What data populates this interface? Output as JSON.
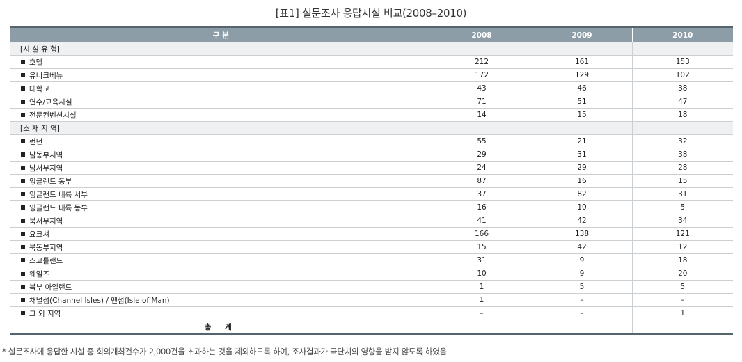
{
  "title": "[표1] 설문조사 응답시설 비교(2008–2010)",
  "header": {
    "label": "구 분",
    "years": [
      "2008",
      "2009",
      "2010"
    ]
  },
  "sections": [
    {
      "label": "[시 설 유 형]",
      "rows": [
        {
          "label": "호텔",
          "values": [
            "212",
            "161",
            "153"
          ]
        },
        {
          "label": "유니크베뉴",
          "values": [
            "172",
            "129",
            "102"
          ]
        },
        {
          "label": "대학교",
          "values": [
            "43",
            "46",
            "38"
          ]
        },
        {
          "label": "연수/교육시설",
          "values": [
            "71",
            "51",
            "47"
          ]
        },
        {
          "label": "전문컨벤션시설",
          "values": [
            "14",
            "15",
            "18"
          ]
        }
      ]
    },
    {
      "label": "[소 재 지 역]",
      "rows": [
        {
          "label": "런던",
          "values": [
            "55",
            "21",
            "32"
          ]
        },
        {
          "label": "남동부지역",
          "values": [
            "29",
            "31",
            "38"
          ]
        },
        {
          "label": "남서부지역",
          "values": [
            "24",
            "29",
            "28"
          ]
        },
        {
          "label": "잉글랜드 동부",
          "values": [
            "87",
            "16",
            "15"
          ]
        },
        {
          "label": "잉글랜드 내륙 서부",
          "values": [
            "37",
            "82",
            "31"
          ]
        },
        {
          "label": "잉글랜드 내륙 동부",
          "values": [
            "16",
            "10",
            "5"
          ]
        },
        {
          "label": "북서부지역",
          "values": [
            "41",
            "42",
            "34"
          ]
        },
        {
          "label": "요크셔",
          "values": [
            "166",
            "138",
            "121"
          ]
        },
        {
          "label": "북동부지역",
          "values": [
            "15",
            "42",
            "12"
          ]
        },
        {
          "label": "스코틀랜드",
          "values": [
            "31",
            "9",
            "18"
          ]
        },
        {
          "label": "웨일즈",
          "values": [
            "10",
            "9",
            "20"
          ]
        },
        {
          "label": "북부 아일랜드",
          "values": [
            "1",
            "5",
            "5"
          ]
        },
        {
          "label": "채널섬(Channel Isles) / 맨섬(Isle of Man)",
          "values": [
            "1",
            "–",
            "–"
          ]
        },
        {
          "label": "그 외 지역",
          "values": [
            "–",
            "–",
            "1"
          ]
        }
      ]
    }
  ],
  "total": {
    "label": "총 계",
    "values": [
      "",
      "",
      ""
    ]
  },
  "footnote": "* 설문조사에 응답한 시설 중 회의개최건수가 2,000건을 초과하는 것을 제외하도록 하여, 조사결과가 극단치의 영향을 받지 않도록 하였음."
}
